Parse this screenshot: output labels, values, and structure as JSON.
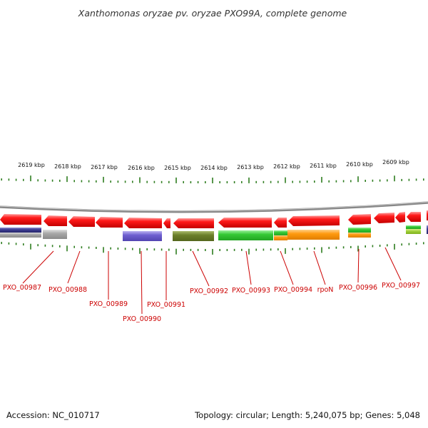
{
  "title": "Xanthomonas oryzae pv. oryzae PXO99A, complete genome",
  "footer": {
    "accession": "Accession: NC_010717",
    "topology": "Topology: circular; Length: 5,240,075 bp; Genes: 5,048"
  },
  "scale": {
    "labels": [
      "2619 kbp",
      "2618 kbp",
      "2617 kbp",
      "2616 kbp",
      "2615 kbp",
      "2614 kbp",
      "2613 kbp",
      "2612 kbp",
      "2611 kbp",
      "2610 kbp",
      "2609 kbp"
    ]
  },
  "genes": [
    {
      "name": "PXO_00987"
    },
    {
      "name": "PXO_00988"
    },
    {
      "name": "PXO_00989"
    },
    {
      "name": "PXO_00990"
    },
    {
      "name": "PXO_00991"
    },
    {
      "name": "PXO_00992"
    },
    {
      "name": "PXO_00993"
    },
    {
      "name": "PXO_00994"
    },
    {
      "name": "rpoN"
    },
    {
      "name": "PXO_00996"
    },
    {
      "name": "PXO_00997"
    }
  ],
  "colors": {
    "gene_arrow": "#ee0000",
    "backbone": "#888888",
    "tick": "#2e7d1f",
    "label": "#cc0000",
    "navy_band": "#3a3a8c",
    "gray_band": "#a0a0a0",
    "purple_band": "#6a5acd",
    "olive_band": "#6b7f2a",
    "green_band": "#33cc33",
    "orange_band": "#ff9900",
    "lime_band": "#99cc33"
  }
}
